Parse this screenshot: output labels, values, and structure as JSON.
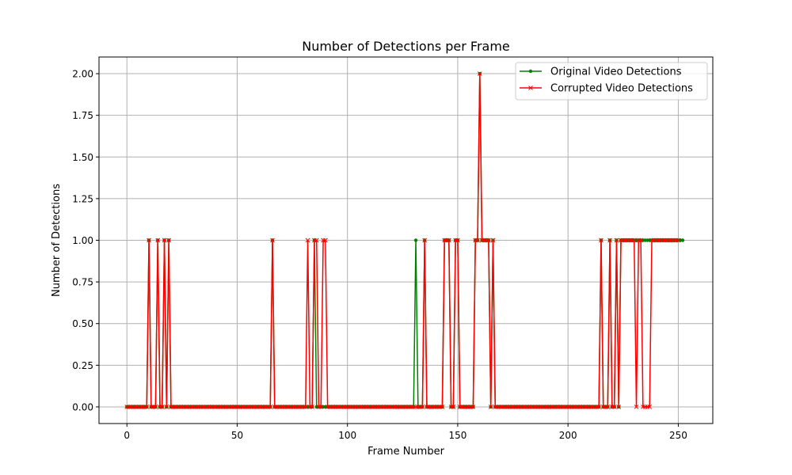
{
  "chart_data": {
    "type": "line",
    "title": "Number of Detections per Frame",
    "xlabel": "Frame Number",
    "ylabel": "Number of Detections",
    "xlim": [
      -12.65,
      265.65
    ],
    "ylim": [
      -0.1,
      2.1
    ],
    "xticks": [
      0,
      50,
      100,
      150,
      200,
      250
    ],
    "xtick_labels": [
      "0",
      "50",
      "100",
      "150",
      "200",
      "250"
    ],
    "yticks": [
      0.0,
      0.25,
      0.5,
      0.75,
      1.0,
      1.25,
      1.5,
      1.75,
      2.0
    ],
    "ytick_labels": [
      "0.00",
      "0.25",
      "0.50",
      "0.75",
      "1.00",
      "1.25",
      "1.50",
      "1.75",
      "2.00"
    ],
    "grid": true,
    "legend_position": "top-right",
    "series": [
      {
        "name": "Original Video Detections",
        "color": "#008000",
        "marker": "dot",
        "x_start": 0,
        "values": [
          0,
          0,
          0,
          0,
          0,
          0,
          0,
          0,
          0,
          0,
          1,
          0,
          0,
          0,
          1,
          0,
          0,
          1,
          0,
          1,
          0,
          0,
          0,
          0,
          0,
          0,
          0,
          0,
          0,
          0,
          0,
          0,
          0,
          0,
          0,
          0,
          0,
          0,
          0,
          0,
          0,
          0,
          0,
          0,
          0,
          0,
          0,
          0,
          0,
          0,
          0,
          0,
          0,
          0,
          0,
          0,
          0,
          0,
          0,
          0,
          0,
          0,
          0,
          0,
          0,
          0,
          1,
          0,
          0,
          0,
          0,
          0,
          0,
          0,
          0,
          0,
          0,
          0,
          0,
          0,
          0,
          0,
          0,
          0,
          0,
          1,
          0,
          0,
          0,
          0,
          0,
          0,
          0,
          0,
          0,
          0,
          0,
          0,
          0,
          0,
          0,
          0,
          0,
          0,
          0,
          0,
          0,
          0,
          0,
          0,
          0,
          0,
          0,
          0,
          0,
          0,
          0,
          0,
          0,
          0,
          0,
          0,
          0,
          0,
          0,
          0,
          0,
          0,
          0,
          0,
          0,
          1,
          0,
          0,
          0,
          1,
          0,
          0,
          0,
          0,
          0,
          0,
          0,
          0,
          1,
          1,
          1,
          0,
          0,
          1,
          1,
          0,
          0,
          0,
          0,
          0,
          0,
          0,
          1,
          1,
          2,
          1,
          1,
          1,
          1,
          0,
          1,
          0,
          0,
          0,
          0,
          0,
          0,
          0,
          0,
          0,
          0,
          0,
          0,
          0,
          0,
          0,
          0,
          0,
          0,
          0,
          0,
          0,
          0,
          0,
          0,
          0,
          0,
          0,
          0,
          0,
          0,
          0,
          0,
          0,
          0,
          0,
          0,
          0,
          0,
          0,
          0,
          0,
          0,
          0,
          0,
          0,
          0,
          0,
          0,
          1,
          0,
          0,
          0,
          1,
          0,
          0,
          1,
          0,
          1,
          1,
          1,
          1,
          1,
          1,
          1,
          1,
          1,
          1,
          1,
          1,
          1,
          1,
          1,
          1,
          1,
          1,
          1,
          1,
          1,
          1,
          1,
          1,
          1,
          1,
          1,
          1,
          1
        ]
      },
      {
        "name": "Corrupted Video Detections",
        "color": "#ff0000",
        "marker": "x",
        "x_start": 0,
        "values": [
          0,
          0,
          0,
          0,
          0,
          0,
          0,
          0,
          0,
          0,
          1,
          0,
          0,
          0,
          1,
          0,
          0,
          1,
          0,
          1,
          0,
          0,
          0,
          0,
          0,
          0,
          0,
          0,
          0,
          0,
          0,
          0,
          0,
          0,
          0,
          0,
          0,
          0,
          0,
          0,
          0,
          0,
          0,
          0,
          0,
          0,
          0,
          0,
          0,
          0,
          0,
          0,
          0,
          0,
          0,
          0,
          0,
          0,
          0,
          0,
          0,
          0,
          0,
          0,
          0,
          0,
          1,
          0,
          0,
          0,
          0,
          0,
          0,
          0,
          0,
          0,
          0,
          0,
          0,
          0,
          0,
          0,
          1,
          0,
          0,
          1,
          1,
          0,
          0,
          1,
          1,
          0,
          0,
          0,
          0,
          0,
          0,
          0,
          0,
          0,
          0,
          0,
          0,
          0,
          0,
          0,
          0,
          0,
          0,
          0,
          0,
          0,
          0,
          0,
          0,
          0,
          0,
          0,
          0,
          0,
          0,
          0,
          0,
          0,
          0,
          0,
          0,
          0,
          0,
          0,
          0,
          0,
          0,
          0,
          0,
          1,
          0,
          0,
          0,
          0,
          0,
          0,
          0,
          0,
          1,
          1,
          1,
          0,
          0,
          1,
          1,
          0,
          0,
          0,
          0,
          0,
          0,
          0,
          1,
          1,
          2,
          1,
          1,
          1,
          1,
          0,
          1,
          0,
          0,
          0,
          0,
          0,
          0,
          0,
          0,
          0,
          0,
          0,
          0,
          0,
          0,
          0,
          0,
          0,
          0,
          0,
          0,
          0,
          0,
          0,
          0,
          0,
          0,
          0,
          0,
          0,
          0,
          0,
          0,
          0,
          0,
          0,
          0,
          0,
          0,
          0,
          0,
          0,
          0,
          0,
          0,
          0,
          0,
          0,
          0,
          1,
          0,
          0,
          0,
          1,
          0,
          0,
          1,
          0,
          1,
          1,
          1,
          1,
          1,
          1,
          1,
          0,
          1,
          1,
          0,
          0,
          0,
          0,
          1,
          1,
          1,
          1,
          1,
          1,
          1,
          1,
          1,
          1,
          1,
          1,
          1
        ]
      }
    ]
  }
}
